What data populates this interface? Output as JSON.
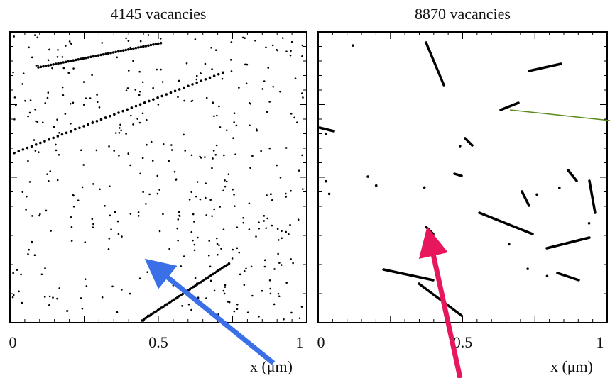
{
  "panels": [
    {
      "title": "4145 vacancies",
      "xlim": [
        0,
        1
      ],
      "xticks": [
        0,
        0.5,
        1
      ],
      "xlabel": "x (μm)"
    },
    {
      "title": "8870 vacancies",
      "xlim": [
        0,
        1
      ],
      "xticks": [
        0,
        0.5,
        1
      ],
      "xlabel": "x (μm)"
    }
  ]
}
